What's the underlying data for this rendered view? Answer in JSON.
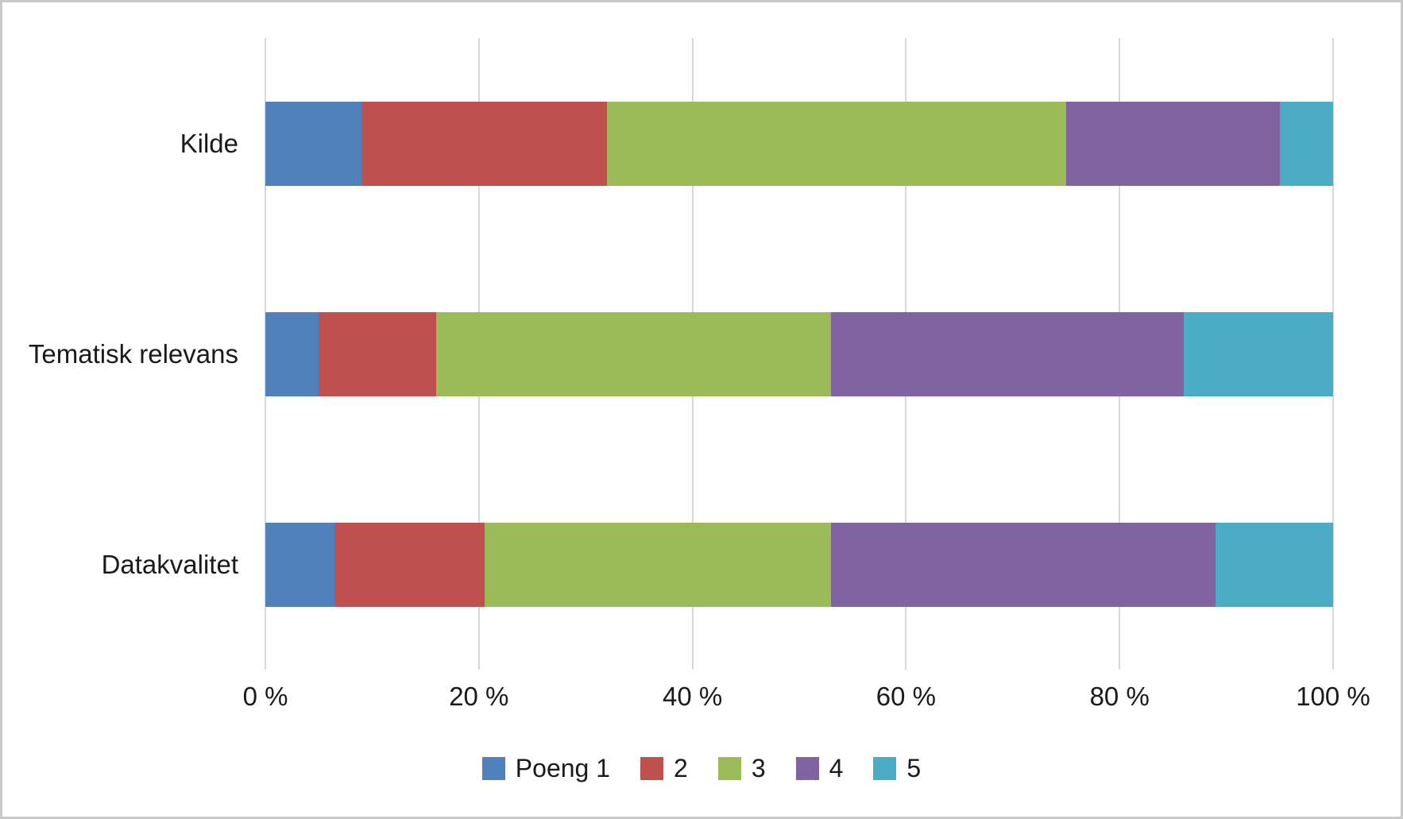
{
  "chart_data": {
    "type": "bar",
    "orientation": "horizontal",
    "stacked": true,
    "stacked_total_percent": 100,
    "title": "",
    "xlabel": "",
    "ylabel": "",
    "categories": [
      "Kilde",
      "Tematisk relevans",
      "Datakvalitet"
    ],
    "series": [
      {
        "name": "Poeng 1",
        "color": "#4F81BD",
        "values": [
          9,
          5,
          6.5
        ]
      },
      {
        "name": "2",
        "color": "#C0504D",
        "values": [
          23,
          11,
          14
        ]
      },
      {
        "name": "3",
        "color": "#9BBB59",
        "values": [
          43,
          37,
          32.5
        ]
      },
      {
        "name": "4",
        "color": "#8064A2",
        "values": [
          20,
          33,
          36
        ]
      },
      {
        "name": "5",
        "color": "#4BACC6",
        "values": [
          5,
          14,
          11
        ]
      }
    ],
    "xlim": [
      0,
      100
    ],
    "x_ticks": [
      "0 %",
      "20 %",
      "40 %",
      "60 %",
      "80 %",
      "100 %"
    ],
    "grid": "vertical",
    "gridline_color": "#D9D9D9",
    "legend_position": "bottom",
    "background_color": "#FFFFFF",
    "border_color": "#C9C9C9",
    "text_color": "#1A1A1A"
  }
}
